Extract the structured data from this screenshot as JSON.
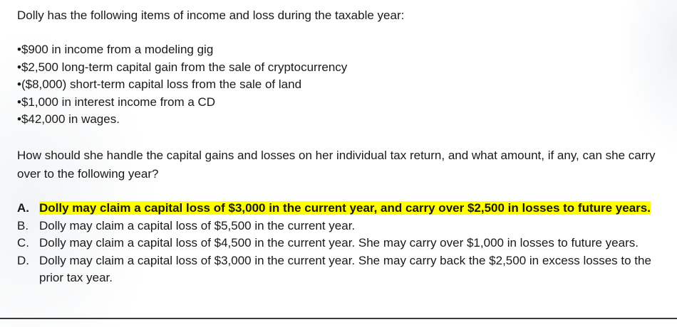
{
  "intro": "Dolly has the following items of income and loss during the taxable year:",
  "items": [
    "•$900 in income from a modeling gig",
    "•$2,500 long-term capital gain from the sale of cryptocurrency",
    "•($8,000) short-term capital loss from the sale of land",
    "•$1,000 in interest income from a CD",
    "•$42,000 in wages."
  ],
  "question": "How should she handle the capital gains and losses on her individual tax return, and what amount, if any, can she carry over to the following year?",
  "choices": [
    {
      "letter": "A.",
      "text": "Dolly may claim a capital loss of $3,000 in the current year, and carry over $2,500 in losses to future years.",
      "highlight_color": "#ffff00"
    },
    {
      "letter": "B.",
      "text": "Dolly may claim a capital loss of $5,500 in the current year."
    },
    {
      "letter": "C.",
      "text": "Dolly may claim a capital loss of $4,500 in the current year. She may carry over $1,000 in losses to future years."
    },
    {
      "letter": "D.",
      "text": "Dolly may claim a capital loss of $3,000 in the current year. She may carry back the $2,500 in excess losses to the prior tax year."
    }
  ]
}
